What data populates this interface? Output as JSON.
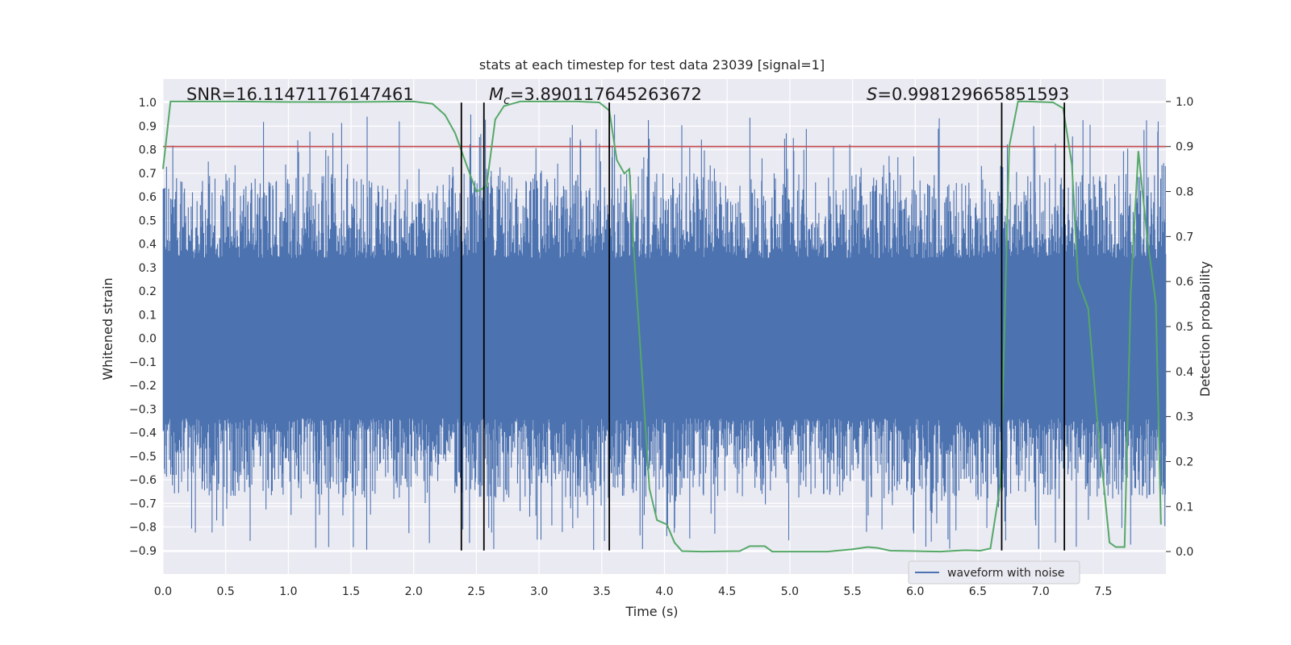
{
  "chart_data": {
    "type": "line",
    "title": "stats at each timestep for test data 23039 [signal=1]",
    "xlabel": "Time (s)",
    "ylabel": "Whitened strain",
    "y2label": "Detection probability",
    "xlim": [
      0,
      8
    ],
    "ylim": [
      -1.0,
      1.1
    ],
    "y2lim": [
      -0.05,
      1.05
    ],
    "xticks": [
      0.0,
      0.5,
      1.0,
      1.5,
      2.0,
      2.5,
      3.0,
      3.5,
      4.0,
      4.5,
      5.0,
      5.5,
      6.0,
      6.5,
      7.0,
      7.5
    ],
    "yticks": [
      -0.9,
      -0.8,
      -0.7,
      -0.6,
      -0.5,
      -0.4,
      -0.3,
      -0.2,
      -0.1,
      0.0,
      0.1,
      0.2,
      0.3,
      0.4,
      0.5,
      0.6,
      0.7,
      0.8,
      0.9,
      1.0
    ],
    "y2ticks": [
      0.0,
      0.1,
      0.2,
      0.3,
      0.4,
      0.5,
      0.6,
      0.7,
      0.8,
      0.9,
      1.0
    ],
    "grid": true,
    "legend": {
      "placement": "lower-right",
      "entries": [
        "waveform with noise"
      ]
    },
    "annotations": {
      "snr": "SNR=16.11471176147461",
      "mc_symbol": "M",
      "mc_sub": "c",
      "mc_value": "=3.890117645263672",
      "s_symbol": "S",
      "s_value": "=0.998129665851593"
    },
    "threshold": {
      "y2": 0.9,
      "color": "#c44e52"
    },
    "vertical_lines_x": [
      2.38,
      2.56,
      3.56,
      6.69,
      7.19
    ],
    "series": [
      {
        "name": "waveform with noise",
        "axis": "left",
        "color": "#4c72b0",
        "kind": "noise",
        "core_amplitude": 0.31,
        "spike_max": 0.95,
        "spike_min": -0.9
      },
      {
        "axis": "right",
        "color": "#55a868",
        "x": [
          0.0,
          0.06,
          0.1,
          0.3,
          0.6,
          1.0,
          1.5,
          2.0,
          2.15,
          2.25,
          2.33,
          2.42,
          2.5,
          2.58,
          2.65,
          2.72,
          2.85,
          3.0,
          3.3,
          3.48,
          3.56,
          3.62,
          3.68,
          3.72,
          3.76,
          3.82,
          3.88,
          3.94,
          4.02,
          4.08,
          4.14,
          4.3,
          4.6,
          4.68,
          4.73,
          4.8,
          4.86,
          5.0,
          5.3,
          5.5,
          5.62,
          5.7,
          5.8,
          6.0,
          6.2,
          6.4,
          6.52,
          6.6,
          6.68,
          6.75,
          6.82,
          6.9,
          7.1,
          7.18,
          7.25,
          7.3,
          7.38,
          7.45,
          7.55,
          7.6,
          7.67,
          7.72,
          7.78,
          7.85,
          7.92,
          7.96
        ],
        "y": [
          0.85,
          1.0,
          1.0,
          1.0,
          1.0,
          0.999,
          0.999,
          1.0,
          0.995,
          0.97,
          0.93,
          0.86,
          0.8,
          0.81,
          0.96,
          0.99,
          1.0,
          1.0,
          1.0,
          0.998,
          0.98,
          0.87,
          0.84,
          0.85,
          0.65,
          0.4,
          0.14,
          0.07,
          0.06,
          0.02,
          0.001,
          0.0,
          0.001,
          0.012,
          0.012,
          0.012,
          0.0,
          0.0,
          0.0,
          0.005,
          0.01,
          0.008,
          0.002,
          0.001,
          0.0,
          0.003,
          0.002,
          0.007,
          0.15,
          0.9,
          1.0,
          1.0,
          0.998,
          0.985,
          0.86,
          0.6,
          0.54,
          0.3,
          0.02,
          0.01,
          0.01,
          0.58,
          0.89,
          0.7,
          0.55,
          0.06
        ]
      }
    ]
  }
}
